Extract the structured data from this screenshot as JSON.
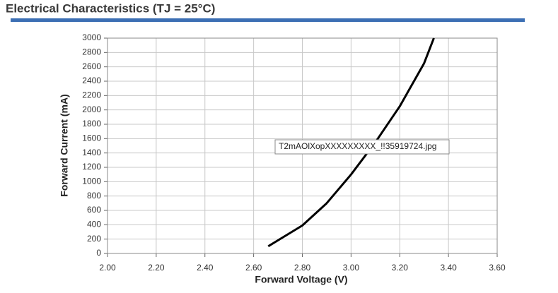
{
  "chart_data": {
    "type": "line",
    "title": "Electrical Characteristics (TJ = 25°C)",
    "x_label": "Forward Voltage (V)",
    "y_label": "Forward Current (mA)",
    "annotation": "T2mAOlXopXXXXXXXXX_!!35919724.jpg",
    "x": [
      2.66,
      2.8,
      2.9,
      3.0,
      3.1,
      3.2,
      3.3,
      3.34
    ],
    "series": [
      {
        "name": "Forward Current",
        "color": "#000000",
        "values": [
          100,
          390,
          700,
          1100,
          1550,
          2050,
          2650,
          3000
        ]
      }
    ],
    "xlim": [
      2.0,
      3.6
    ],
    "xticks": [
      {
        "value": 2.0,
        "label": "2.00"
      },
      {
        "value": 2.2,
        "label": "2.20"
      },
      {
        "value": 2.4,
        "label": "2.40"
      },
      {
        "value": 2.6,
        "label": "2.60"
      },
      {
        "value": 2.8,
        "label": "2.80"
      },
      {
        "value": 3.0,
        "label": "3.00"
      },
      {
        "value": 3.2,
        "label": "3.20"
      },
      {
        "value": 3.4,
        "label": "3.40"
      },
      {
        "value": 3.6,
        "label": "3.60"
      }
    ],
    "ylim": [
      0,
      3000
    ],
    "yticks": [
      0,
      200,
      400,
      600,
      800,
      1000,
      1200,
      1400,
      1600,
      1800,
      2000,
      2200,
      2400,
      2600,
      2800,
      3000
    ],
    "grid": true
  }
}
